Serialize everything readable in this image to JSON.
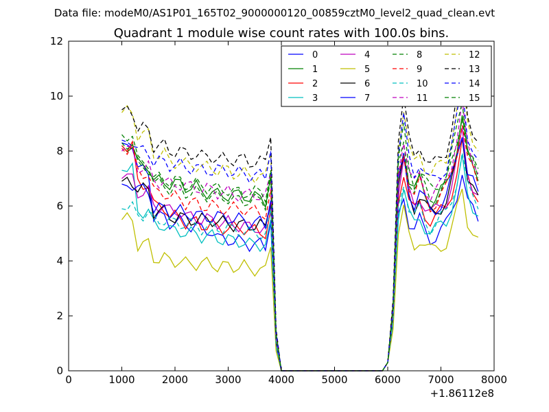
{
  "header": {
    "suptitle": "Data file: modeM0/AS1P01_165T02_9000000120_00859cztM0_level2_quad_clean.evt"
  },
  "chart_data": {
    "type": "line",
    "title": "Quadrant 1 module wise count rates with 100.0s bins.",
    "xlabel": "",
    "ylabel": "",
    "x_offset_label": "+1.86112e8",
    "xlim": [
      0,
      8000
    ],
    "ylim": [
      0,
      12
    ],
    "xticks": [
      "0",
      "1000",
      "2000",
      "3000",
      "4000",
      "5000",
      "6000",
      "7000",
      "8000"
    ],
    "yticks": [
      "0",
      "2",
      "4",
      "6",
      "8",
      "10",
      "12"
    ],
    "grid": false,
    "legend_position": "upper right",
    "x": [
      1000,
      1100,
      1200,
      1300,
      1400,
      1500,
      1600,
      1700,
      1800,
      1900,
      2000,
      2100,
      2200,
      2300,
      2400,
      2500,
      2600,
      2700,
      2800,
      2900,
      3000,
      3100,
      3200,
      3300,
      3400,
      3500,
      3600,
      3700,
      3800,
      3900,
      4000,
      5900,
      6000,
      6100,
      6200,
      6300,
      6400,
      6500,
      6600,
      6700,
      6800,
      6900,
      7000,
      7100,
      7200,
      7300,
      7400,
      7500,
      7600,
      7700
    ],
    "series": [
      {
        "name": "0",
        "color": "#0000ff",
        "dash": "solid",
        "base": [
          8.3,
          7.3,
          5.6,
          5.4,
          5.3,
          5.1,
          4.8,
          4.7,
          4.6,
          4.5
        ],
        "scale": 0.85
      },
      {
        "name": "1",
        "color": "#008000",
        "dash": "solid",
        "base": [
          8.2,
          7.5,
          6.9,
          6.8,
          6.7,
          6.5,
          6.4,
          6.4,
          6.3,
          6.2
        ],
        "scale": 1.08
      },
      {
        "name": "2",
        "color": "#ff0000",
        "dash": "solid",
        "base": [
          8.2,
          6.8,
          6.0,
          5.6,
          5.4,
          5.3,
          5.2,
          5.2,
          5.1,
          5.0
        ],
        "scale": 0.96
      },
      {
        "name": "3",
        "color": "#00bfbf",
        "dash": "solid",
        "base": [
          7.3,
          5.8,
          5.3,
          5.1,
          5.0,
          4.9,
          4.8,
          4.7,
          4.6,
          4.6
        ],
        "scale": 0.88
      },
      {
        "name": "4",
        "color": "#bf00bf",
        "dash": "solid",
        "base": [
          7.0,
          6.5,
          6.0,
          5.8,
          5.6,
          5.5,
          5.4,
          5.3,
          5.2,
          5.1
        ],
        "scale": 1.0
      },
      {
        "name": "5",
        "color": "#bfbf00",
        "dash": "solid",
        "base": [
          5.5,
          4.6,
          4.1,
          4.0,
          3.9,
          3.9,
          3.8,
          3.8,
          3.7,
          3.6
        ],
        "scale": 0.76
      },
      {
        "name": "6",
        "color": "#000000",
        "dash": "solid",
        "base": [
          6.9,
          6.6,
          5.8,
          5.6,
          5.5,
          5.5,
          5.4,
          5.3,
          5.3,
          5.2
        ],
        "scale": 1.0
      },
      {
        "name": "7",
        "color": "#0000ff",
        "dash": "solid",
        "base": [
          6.8,
          6.6,
          5.9,
          5.8,
          5.7,
          5.6,
          5.6,
          5.5,
          5.4,
          5.3
        ],
        "scale": 1.02
      },
      {
        "name": "8",
        "color": "#008000",
        "dash": "dashed",
        "base": [
          8.6,
          7.6,
          6.8,
          6.6,
          6.5,
          6.4,
          6.3,
          6.2,
          6.2,
          6.1
        ],
        "scale": 1.1
      },
      {
        "name": "9",
        "color": "#ff0000",
        "dash": "dashed",
        "base": [
          8.1,
          7.2,
          6.5,
          6.3,
          6.1,
          6.0,
          5.9,
          5.9,
          5.8,
          5.7
        ],
        "scale": 1.06
      },
      {
        "name": "10",
        "color": "#00bfbf",
        "dash": "dashed",
        "base": [
          5.9,
          5.7,
          5.5,
          5.4,
          5.3,
          5.2,
          5.2,
          5.1,
          5.0,
          5.0
        ],
        "scale": 0.92
      },
      {
        "name": "11",
        "color": "#bf00bf",
        "dash": "dashed",
        "base": [
          8.0,
          7.4,
          6.9,
          6.8,
          6.7,
          6.6,
          6.5,
          6.4,
          6.4,
          6.3
        ],
        "scale": 1.12
      },
      {
        "name": "12",
        "color": "#bfbf00",
        "dash": "dashed",
        "base": [
          9.4,
          8.6,
          7.9,
          7.6,
          7.5,
          7.4,
          7.3,
          7.2,
          7.1,
          7.0
        ],
        "scale": 1.25
      },
      {
        "name": "13",
        "color": "#000000",
        "dash": "dashed",
        "base": [
          9.5,
          8.8,
          8.2,
          8.0,
          7.9,
          7.8,
          7.7,
          7.7,
          7.6,
          7.6
        ],
        "scale": 1.3
      },
      {
        "name": "14",
        "color": "#0000ff",
        "dash": "dashed",
        "base": [
          8.4,
          8.0,
          7.6,
          7.5,
          7.4,
          7.3,
          7.3,
          7.2,
          7.1,
          7.1
        ],
        "scale": 1.2
      },
      {
        "name": "15",
        "color": "#008000",
        "dash": "dashed",
        "base": [
          8.3,
          7.4,
          7.0,
          6.9,
          6.8,
          6.7,
          6.6,
          6.5,
          6.5,
          6.4
        ],
        "scale": 1.15
      }
    ]
  }
}
